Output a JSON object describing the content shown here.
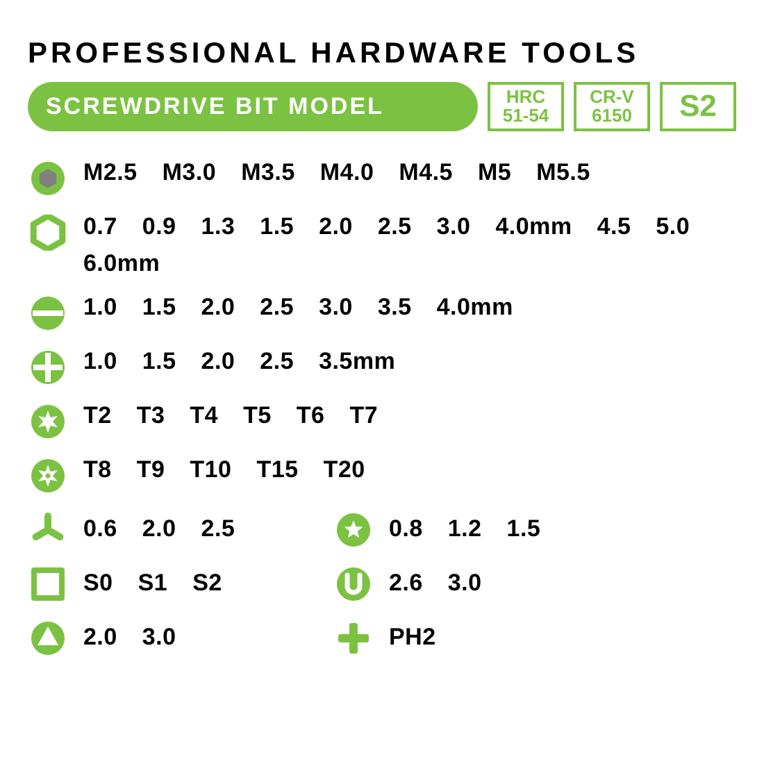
{
  "colors": {
    "accent": "#7cc242",
    "text": "#000000",
    "bg": "#ffffff",
    "hex_inner": "#808080"
  },
  "title": "PROFESSIONAL  HARDWARE  TOOLS",
  "subtitle": "SCREWDRIVE  BIT  MODEL",
  "badges": [
    {
      "line1": "HRC",
      "line2": "51-54"
    },
    {
      "line1": "CR-V",
      "line2": "6150"
    },
    {
      "line1": "S2"
    }
  ],
  "rows": [
    {
      "icon": "hex-solid",
      "values": [
        "M2.5",
        "M3.0",
        "M3.5",
        "M4.0",
        "M4.5",
        "M5",
        "M5.5"
      ]
    },
    {
      "icon": "hex-outline",
      "values": [
        "0.7",
        "0.9",
        "1.3",
        "1.5",
        "2.0",
        "2.5",
        "3.0",
        "4.0mm",
        "4.5",
        "5.0",
        "6.0mm"
      ]
    },
    {
      "icon": "slot",
      "values": [
        "1.0",
        "1.5",
        "2.0",
        "2.5",
        "3.0",
        "3.5",
        "4.0mm"
      ]
    },
    {
      "icon": "phillips",
      "values": [
        "1.0",
        "1.5",
        "2.0",
        "2.5",
        "3.5mm"
      ]
    },
    {
      "icon": "torx",
      "values": [
        "T2",
        "T3",
        "T4",
        "T5",
        "T6",
        "T7"
      ]
    },
    {
      "icon": "torx-security",
      "values": [
        "T8",
        "T9",
        "T10",
        "T15",
        "T20"
      ]
    }
  ],
  "split_rows": [
    {
      "left": {
        "icon": "tri-wing",
        "values": [
          "0.6",
          "2.0",
          "2.5"
        ]
      },
      "right": {
        "icon": "pentalobe",
        "values": [
          "0.8",
          "1.2",
          "1.5"
        ]
      }
    },
    {
      "left": {
        "icon": "square",
        "values": [
          "S0",
          "S1",
          "S2"
        ]
      },
      "right": {
        "icon": "u-shape",
        "values": [
          "2.6",
          "3.0"
        ]
      }
    },
    {
      "left": {
        "icon": "triangle",
        "values": [
          "2.0",
          "3.0"
        ]
      },
      "right": {
        "icon": "cross-outline",
        "values": [
          "PH2"
        ]
      }
    }
  ]
}
